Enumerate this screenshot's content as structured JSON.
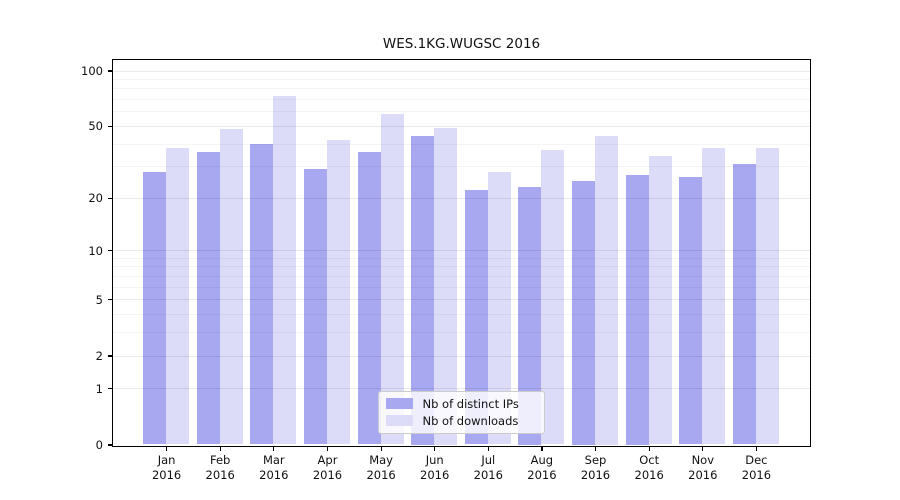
{
  "title": "WES.1KG.WUGSC 2016",
  "chart_data": {
    "type": "bar",
    "title": "WES.1KG.WUGSC 2016",
    "categories": [
      "Jan",
      "Feb",
      "Mar",
      "Apr",
      "May",
      "Jun",
      "Jul",
      "Aug",
      "Sep",
      "Oct",
      "Nov",
      "Dec"
    ],
    "category_year": "2016",
    "series": [
      {
        "name": "Nb of distinct IPs",
        "color": "#a8a8f0",
        "values": [
          28,
          36,
          40,
          29,
          36,
          44,
          22,
          23,
          25,
          27,
          26,
          31
        ]
      },
      {
        "name": "Nb of downloads",
        "color": "#dcdcf8",
        "values": [
          38,
          48,
          73,
          42,
          58,
          49,
          28,
          37,
          44,
          34,
          38,
          38
        ]
      }
    ],
    "xlabel": "",
    "ylabel": "",
    "y_scale": "log10(1+x)",
    "y_ticks": [
      100,
      50,
      20,
      10,
      5,
      2,
      1,
      0
    ],
    "y_minor_gridlines": [
      3,
      4,
      6,
      7,
      8,
      9,
      30,
      40,
      60,
      70,
      80,
      90
    ],
    "ylim": [
      0,
      115
    ],
    "grid": true,
    "legend_position": "lower center"
  },
  "colors": {
    "axis": "#000000",
    "background": "#ffffff",
    "bar_distinct_ips": "#a8a8f0",
    "bar_downloads": "#dcdcf8"
  }
}
